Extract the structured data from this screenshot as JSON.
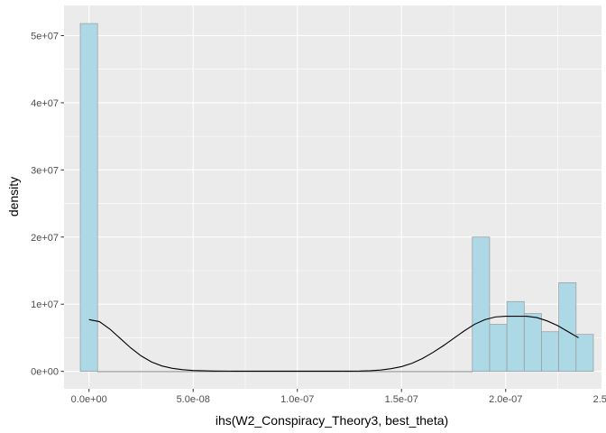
{
  "chart_data": {
    "type": "bar",
    "subtype": "histogram-with-density",
    "xlabel": "ihs(W2_Conspiracy_Theory3, best_theta)",
    "ylabel": "density",
    "xlim": [
      -1.2e-08,
      2.46e-07
    ],
    "ylim": [
      -2600000.0,
      54500000.0
    ],
    "x_ticks": [
      {
        "value": 0,
        "label": "0.0e+00"
      },
      {
        "value": 5e-08,
        "label": "5.0e-08"
      },
      {
        "value": 1e-07,
        "label": "1.0e-07"
      },
      {
        "value": 1.5e-07,
        "label": "1.5e-07"
      },
      {
        "value": 2e-07,
        "label": "2.0e-07"
      },
      {
        "value": 2.5e-07,
        "label": "2.5e-07"
      }
    ],
    "y_ticks": [
      {
        "value": 0,
        "label": "0e+00"
      },
      {
        "value": 10000000.0,
        "label": "1e+07"
      },
      {
        "value": 20000000.0,
        "label": "2e+07"
      },
      {
        "value": 30000000.0,
        "label": "3e+07"
      },
      {
        "value": 40000000.0,
        "label": "4e+07"
      },
      {
        "value": 50000000.0,
        "label": "5e+07"
      }
    ],
    "bin_width": 8.3e-09,
    "bins": [
      {
        "x0": -4.2e-09,
        "x1": 4.1e-09,
        "density": 51800000
      },
      {
        "x0": 4.1e-09,
        "x1": 1.84e-07,
        "density": 0
      },
      {
        "x0": 1.84e-07,
        "x1": 1.923e-07,
        "density": 20000000
      },
      {
        "x0": 1.923e-07,
        "x1": 2.006e-07,
        "density": 7000000
      },
      {
        "x0": 2.006e-07,
        "x1": 2.089e-07,
        "density": 10400000
      },
      {
        "x0": 2.089e-07,
        "x1": 2.172e-07,
        "density": 8600000
      },
      {
        "x0": 2.172e-07,
        "x1": 2.255e-07,
        "density": 5900000
      },
      {
        "x0": 2.255e-07,
        "x1": 2.338e-07,
        "density": 13200000
      },
      {
        "x0": 2.338e-07,
        "x1": 2.421e-07,
        "density": 5500000
      }
    ],
    "density_curve": {
      "x": [
        0,
        5e-09,
        1e-08,
        1.5e-08,
        2e-08,
        2.5e-08,
        3e-08,
        3.5e-08,
        4e-08,
        4.5e-08,
        5e-08,
        6e-08,
        7e-08,
        8e-08,
        9e-08,
        1e-07,
        1.1e-07,
        1.2e-07,
        1.3e-07,
        1.35e-07,
        1.4e-07,
        1.45e-07,
        1.5e-07,
        1.55e-07,
        1.6e-07,
        1.65e-07,
        1.7e-07,
        1.75e-07,
        1.8e-07,
        1.85e-07,
        1.9e-07,
        1.95e-07,
        2e-07,
        2.05e-07,
        2.1e-07,
        2.15e-07,
        2.2e-07,
        2.25e-07,
        2.3e-07,
        2.35e-07
      ],
      "y": [
        7700000,
        7400000,
        6300000,
        4900000,
        3500000,
        2300000,
        1400000,
        800000,
        450000,
        250000,
        130000,
        50000,
        30000,
        30000,
        30000,
        30000,
        30000,
        30000,
        50000,
        100000,
        200000,
        400000,
        700000,
        1200000,
        1900000,
        2800000,
        3800000,
        4900000,
        6000000,
        7000000,
        7700000,
        8100000,
        8200000,
        8200000,
        8200000,
        8000000,
        7500000,
        6800000,
        5900000,
        5000000
      ]
    },
    "colors": {
      "panel_bg": "#ebebeb",
      "grid_major": "#ffffff",
      "bar_fill": "#add8e6",
      "bar_stroke": "#999999",
      "density_line": "#000000",
      "tick_text": "#4d4d4d",
      "tick_mark": "#333333"
    },
    "grid": true,
    "legend": "none"
  }
}
